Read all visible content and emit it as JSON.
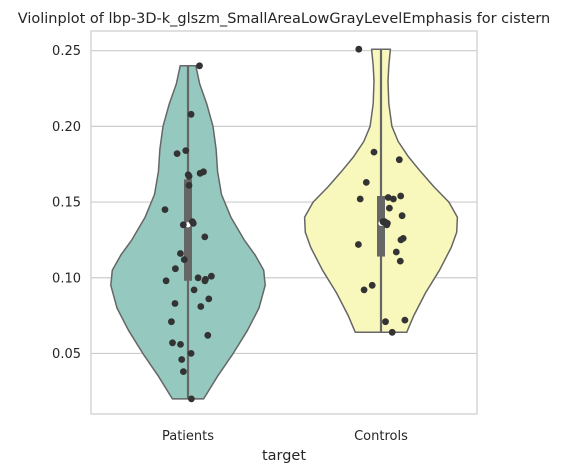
{
  "chart_data": {
    "type": "violin",
    "title": "Violinplot of lbp-3D-k_glszm_SmallAreaLowGrayLevelEmphasis for cistern",
    "xlabel": "target",
    "ylabel": "",
    "categories": [
      "Patients",
      "Controls"
    ],
    "ylim": [
      0.01,
      0.263
    ],
    "yticks": [
      0.05,
      0.1,
      0.15,
      0.2,
      0.25
    ],
    "ytick_labels": [
      "0.05",
      "0.10",
      "0.15",
      "0.20",
      "0.25"
    ],
    "grid": "horizontal",
    "colors": {
      "Patients": "#95c9bf",
      "Controls": "#f8f8bc",
      "outline": "#666666",
      "points": "#333333",
      "grid": "#cccccc"
    },
    "violins": [
      {
        "category": "Patients",
        "min": 0.02,
        "max": 0.24,
        "q1": 0.098,
        "median": 0.135,
        "q3": 0.165,
        "density": [
          [
            0.02,
            0.2
          ],
          [
            0.035,
            0.38
          ],
          [
            0.05,
            0.58
          ],
          [
            0.065,
            0.76
          ],
          [
            0.08,
            0.91
          ],
          [
            0.095,
            0.99
          ],
          [
            0.105,
            0.97
          ],
          [
            0.115,
            0.86
          ],
          [
            0.125,
            0.72
          ],
          [
            0.14,
            0.55
          ],
          [
            0.155,
            0.43
          ],
          [
            0.17,
            0.38
          ],
          [
            0.185,
            0.36
          ],
          [
            0.2,
            0.32
          ],
          [
            0.215,
            0.24
          ],
          [
            0.228,
            0.15
          ],
          [
            0.24,
            0.1
          ]
        ],
        "points": [
          0.24,
          0.208,
          0.184,
          0.182,
          0.17,
          0.169,
          0.168,
          0.167,
          0.161,
          0.145,
          0.137,
          0.136,
          0.135,
          0.127,
          0.116,
          0.112,
          0.106,
          0.101,
          0.1,
          0.099,
          0.098,
          0.098,
          0.092,
          0.086,
          0.083,
          0.081,
          0.071,
          0.062,
          0.057,
          0.056,
          0.05,
          0.046,
          0.038,
          0.02
        ]
      },
      {
        "category": "Controls",
        "min": 0.064,
        "max": 0.251,
        "q1": 0.114,
        "median": 0.136,
        "q3": 0.154,
        "density": [
          [
            0.064,
            0.33
          ],
          [
            0.075,
            0.42
          ],
          [
            0.09,
            0.57
          ],
          [
            0.105,
            0.75
          ],
          [
            0.12,
            0.9
          ],
          [
            0.13,
            0.97
          ],
          [
            0.14,
            0.98
          ],
          [
            0.15,
            0.87
          ],
          [
            0.16,
            0.68
          ],
          [
            0.17,
            0.51
          ],
          [
            0.18,
            0.35
          ],
          [
            0.19,
            0.22
          ],
          [
            0.2,
            0.14
          ],
          [
            0.215,
            0.1
          ],
          [
            0.23,
            0.09
          ],
          [
            0.24,
            0.1
          ],
          [
            0.251,
            0.12
          ]
        ],
        "points": [
          0.251,
          0.183,
          0.178,
          0.163,
          0.154,
          0.153,
          0.152,
          0.152,
          0.146,
          0.141,
          0.137,
          0.137,
          0.136,
          0.135,
          0.126,
          0.125,
          0.122,
          0.117,
          0.111,
          0.095,
          0.092,
          0.072,
          0.071,
          0.064
        ]
      }
    ]
  }
}
